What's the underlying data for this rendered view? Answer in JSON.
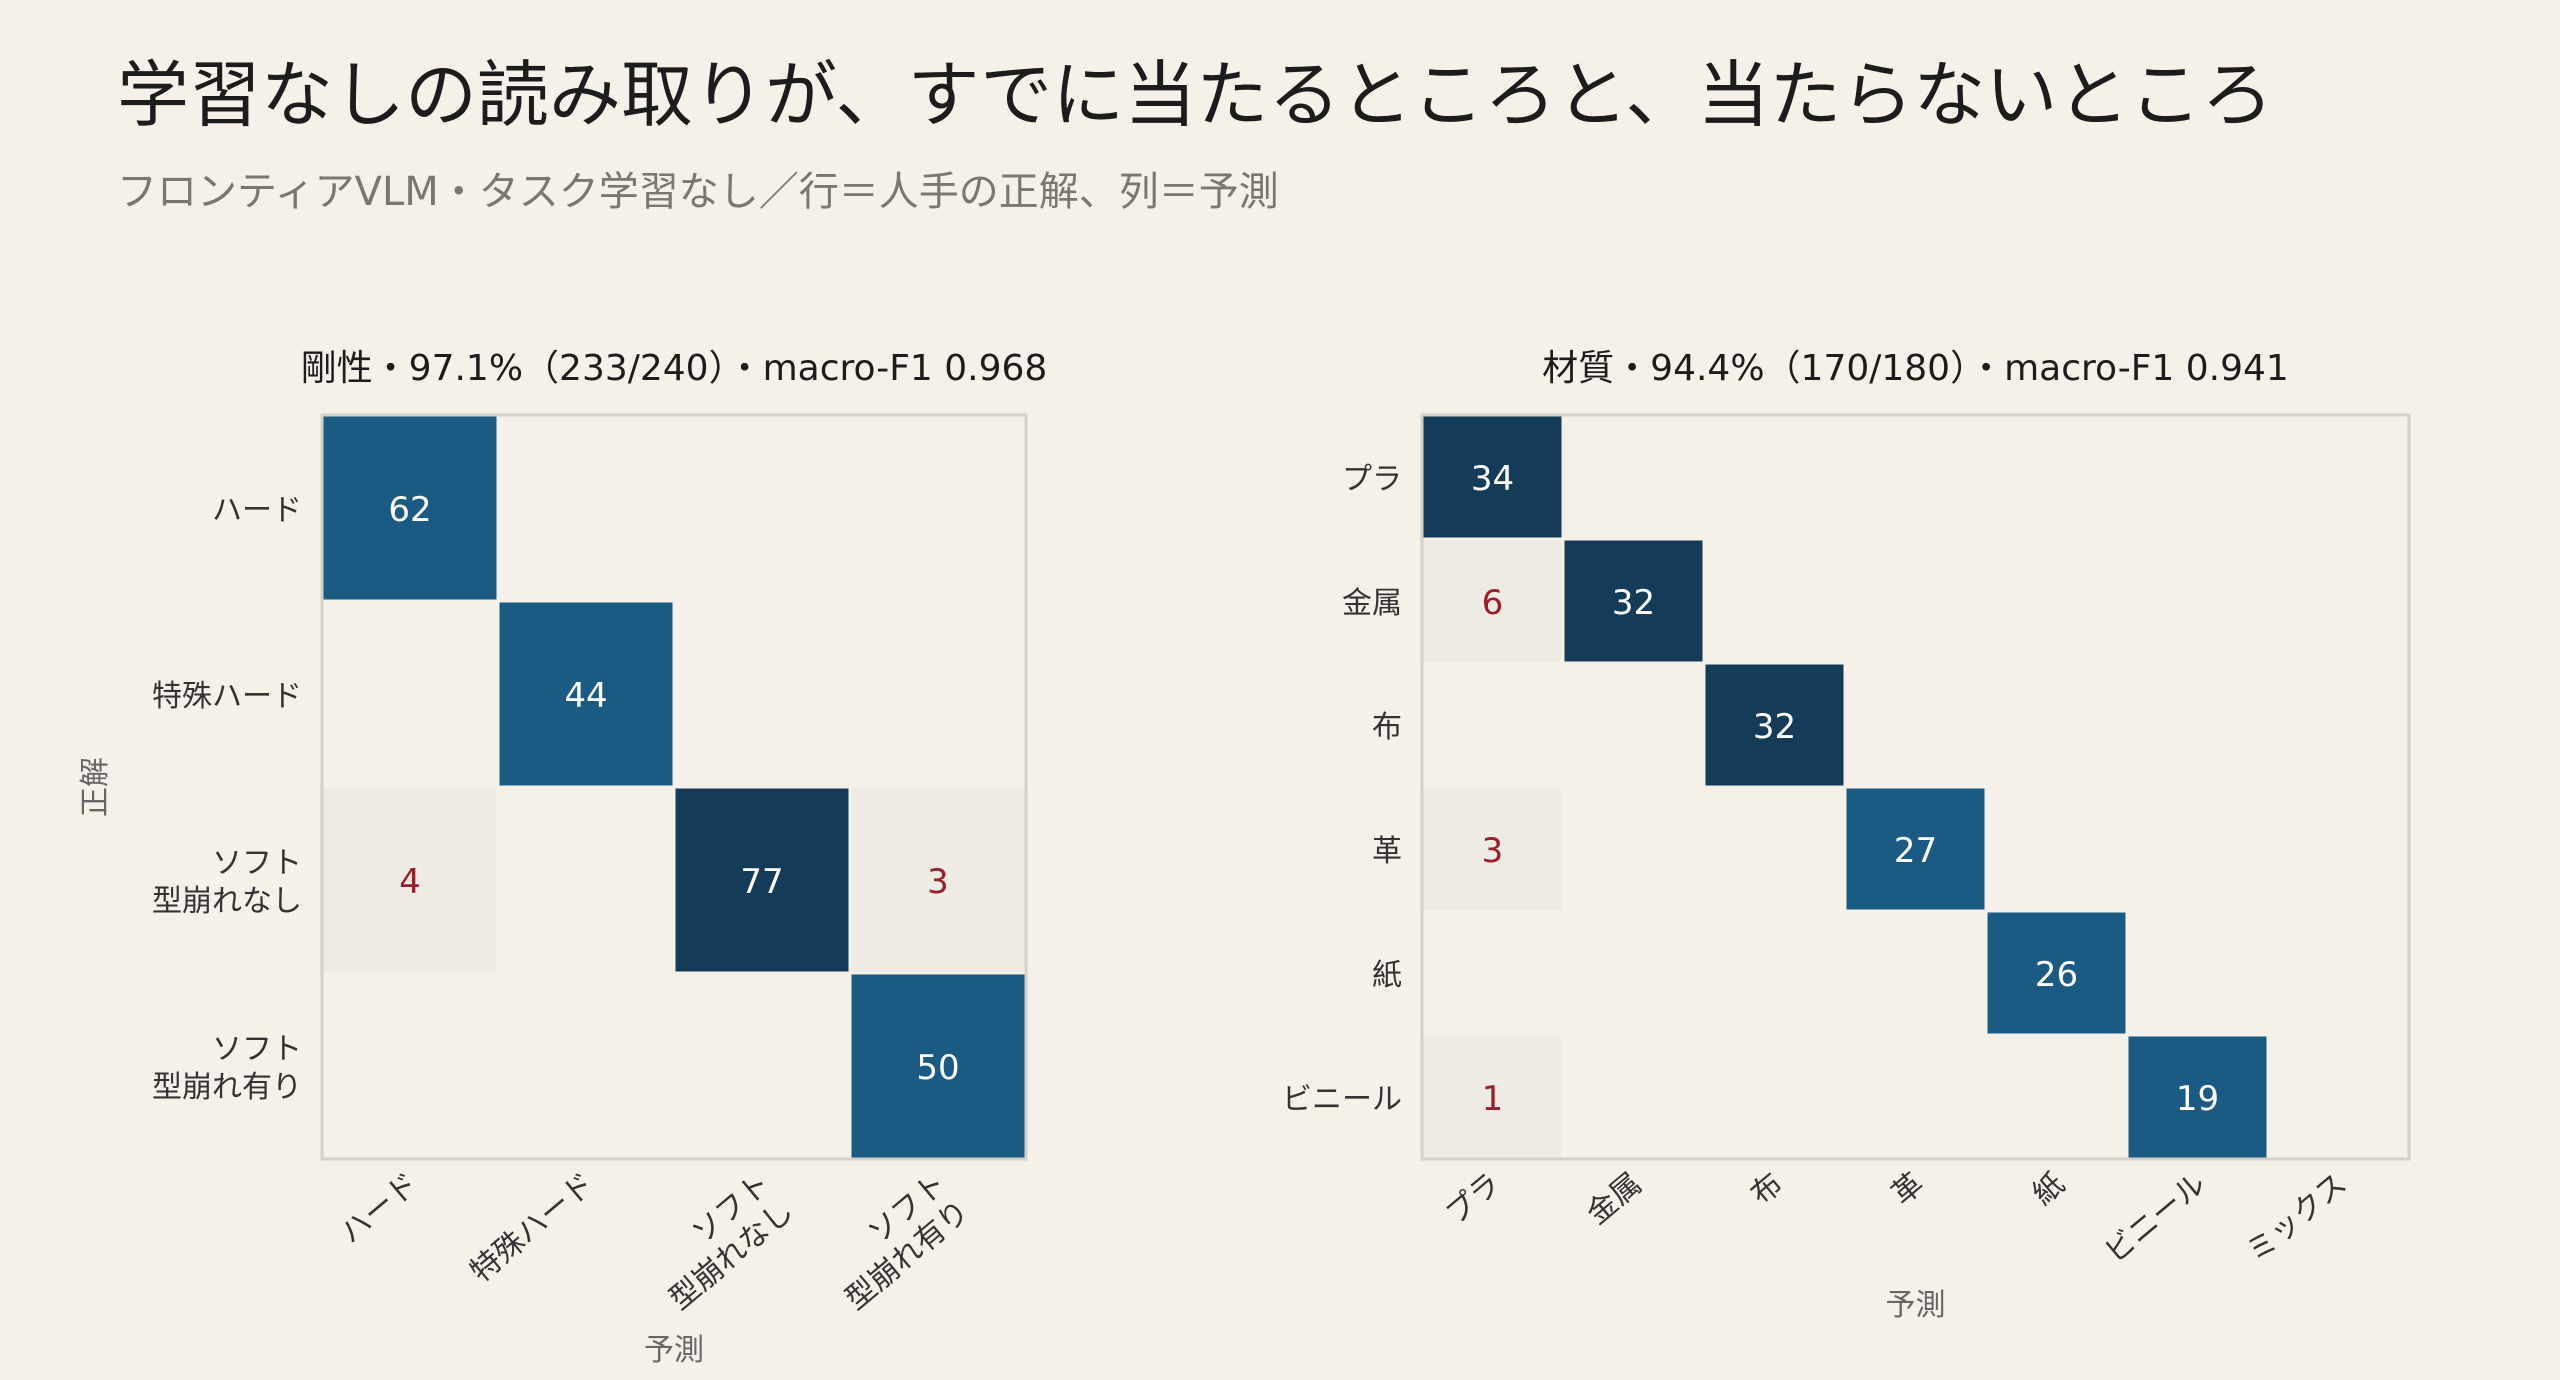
{
  "title": "学習なしの読み取りが、すでに当たるところと、当たらないところ",
  "subtitle": "フロンティアVLM・タスク学習なし／行＝人手の正解、列＝予測",
  "colors": {
    "background": "#f5f0e8",
    "diagonal_dark": "#143b58",
    "diagonal_mid": "#1b5a82",
    "off_diagonal_text": "#9a1f2a",
    "diagonal_text": "#ffffff",
    "off_diagonal_bg": "#eeebe5",
    "frame": "#d6d1c6"
  },
  "chart_data": [
    {
      "type": "heatmap",
      "title": "剛性・97.1%（233/240）・macro-F1 0.968",
      "xlabel": "予測",
      "ylabel": "正解",
      "rows": [
        "ハード",
        "特殊ハード",
        "ソフト\n型崩れなし",
        "ソフト\n型崩れ有り"
      ],
      "cols": [
        "ハード",
        "特殊ハード",
        "ソフト\n型崩れなし",
        "ソフト\n型崩れ有り"
      ],
      "values": [
        [
          62,
          0,
          0,
          0
        ],
        [
          0,
          44,
          0,
          0
        ],
        [
          4,
          0,
          77,
          3
        ],
        [
          0,
          0,
          0,
          50
        ]
      ]
    },
    {
      "type": "heatmap",
      "title": "材質・94.4%（170/180）・macro-F1 0.941",
      "xlabel": "予測",
      "ylabel": "",
      "rows": [
        "プラ",
        "金属",
        "布",
        "革",
        "紙",
        "ビニール"
      ],
      "cols": [
        "プラ",
        "金属",
        "布",
        "革",
        "紙",
        "ビニール",
        "ミックス"
      ],
      "values": [
        [
          34,
          0,
          0,
          0,
          0,
          0,
          0
        ],
        [
          6,
          32,
          0,
          0,
          0,
          0,
          0
        ],
        [
          0,
          0,
          32,
          0,
          0,
          0,
          0
        ],
        [
          3,
          0,
          0,
          27,
          0,
          0,
          0
        ],
        [
          0,
          0,
          0,
          0,
          26,
          0,
          0
        ],
        [
          1,
          0,
          0,
          0,
          0,
          19,
          0
        ]
      ]
    }
  ]
}
